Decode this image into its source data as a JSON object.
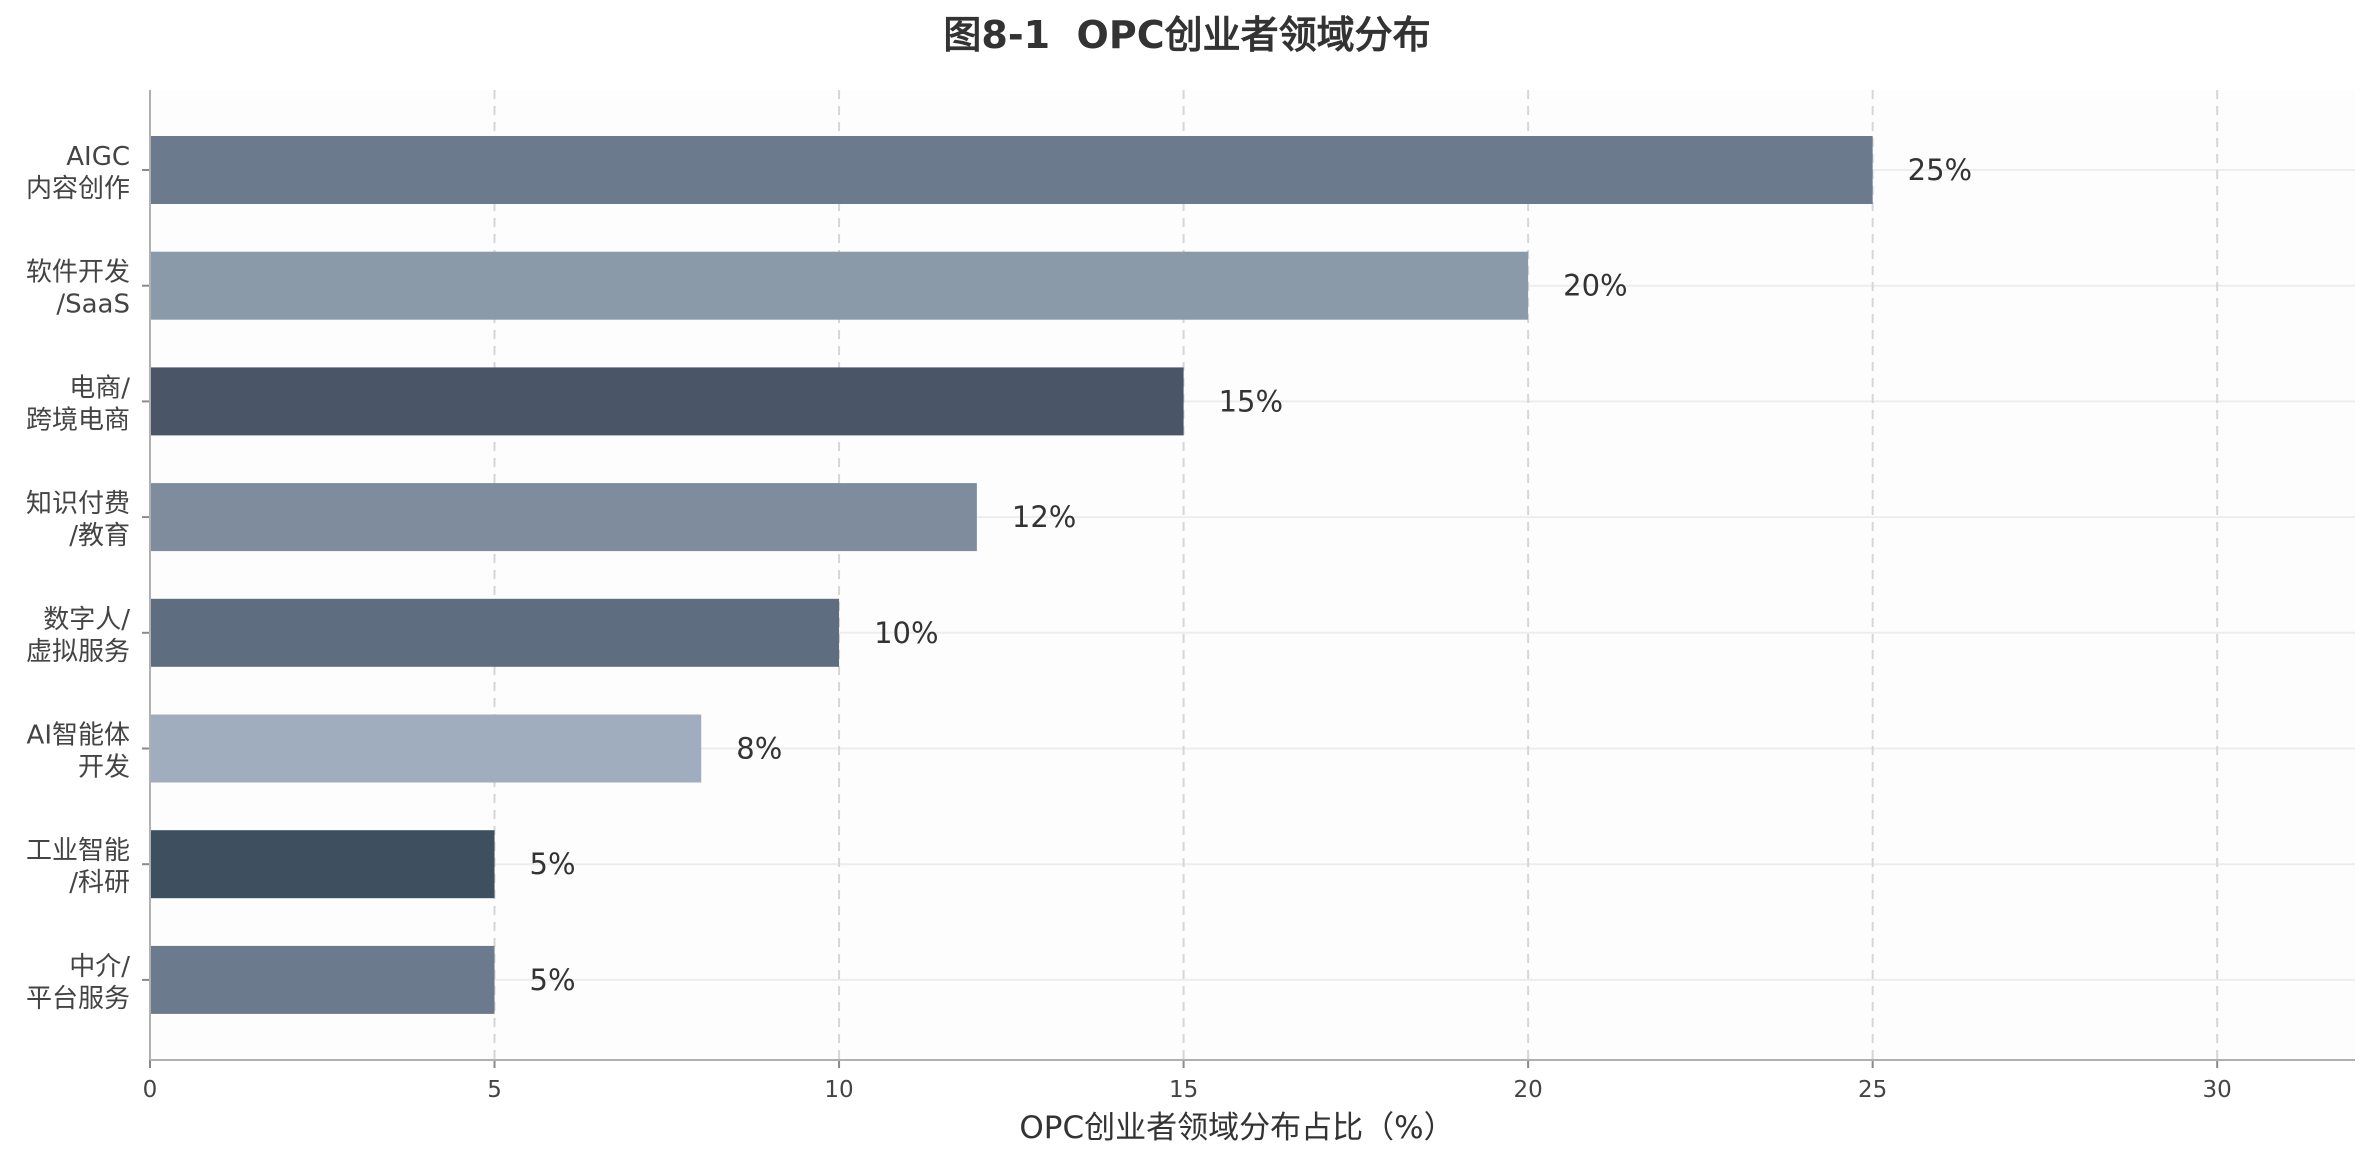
{
  "chart_data": {
    "type": "bar",
    "orientation": "horizontal",
    "title": "图8-1  OPC创业者领域分布",
    "xlabel": "OPC创业者领域分布占比（%）",
    "ylabel": "",
    "xlim": [
      0,
      32
    ],
    "xticks": [
      0,
      5,
      10,
      15,
      20,
      25,
      30
    ],
    "grid": "x-dashed",
    "categories": [
      [
        "AIGC",
        "内容创作"
      ],
      [
        "软件开发",
        "/SaaS"
      ],
      [
        "电商/",
        "跨境电商"
      ],
      [
        "知识付费",
        "/教育"
      ],
      [
        "数字人/",
        "虚拟服务"
      ],
      [
        "AI智能体",
        "开发"
      ],
      [
        "工业智能",
        "/科研"
      ],
      [
        "中介/",
        "平台服务"
      ]
    ],
    "values": [
      25,
      20,
      15,
      12,
      10,
      8,
      5,
      5
    ],
    "value_labels": [
      "25%",
      "20%",
      "15%",
      "12%",
      "10%",
      "8%",
      "5%",
      "5%"
    ],
    "colors": [
      "#6b7a8d",
      "#8a9aa9",
      "#4a5568",
      "#7e8c9e",
      "#5e6e80",
      "#a0adbe",
      "#3e4f5f",
      "#6b7a8d"
    ]
  }
}
